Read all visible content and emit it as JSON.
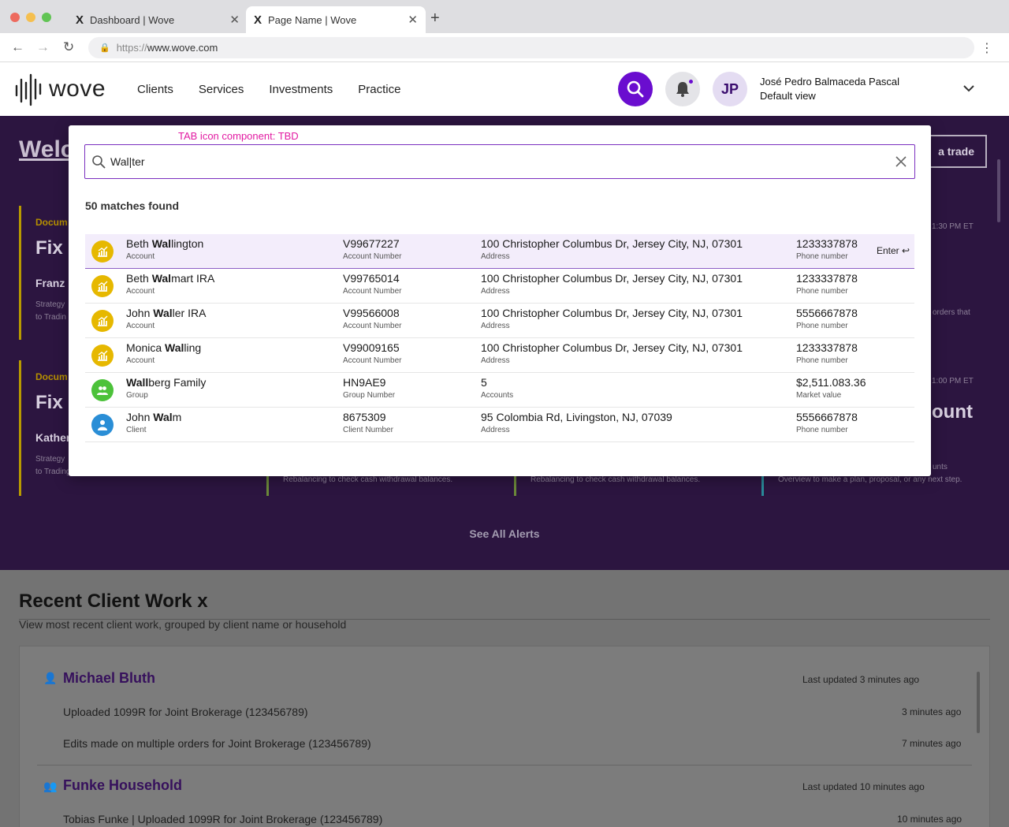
{
  "browser": {
    "tabs": [
      {
        "label": "Dashboard | Wove",
        "favicon": "X"
      },
      {
        "label": "Page Name | Wove",
        "favicon": "X"
      }
    ],
    "new_tab": "+",
    "url_scheme": "https://",
    "url_host": "www.wove.com"
  },
  "header": {
    "logo_text": "wove",
    "nav": [
      "Clients",
      "Services",
      "Investments",
      "Practice"
    ],
    "avatar_initials": "JP",
    "user_name": "José Pedro Balmaceda Pascal",
    "user_view": "Default view",
    "accent_color": "#6a0dcf"
  },
  "background": {
    "hero_title": "Welc",
    "trade_button": "a trade",
    "alerts": [
      {
        "doc": "Docum",
        "fix": "Fix",
        "who": "Franz",
        "desc1": "Strategy",
        "desc2": "to Tradin",
        "time": "1:30 PM ET",
        "right": "orders that"
      },
      {
        "doc": "Docum",
        "fix": "Fix S",
        "who": "Kather",
        "desc1": "Strategy",
        "desc2": "to Trading and Rebalancing to fix these strategies.",
        "time": "1:00 PM ET",
        "right": "unts",
        "right2": "Overview to make a plan, proposal, or any next step.",
        "big": "ount"
      }
    ],
    "mid_desc_1": "Rebalancing to check cash withdrawal balances.",
    "mid_desc_2": "Rebalancing to check cash withdrawal balances.",
    "see_all": "See All Alerts",
    "recent_title": "Recent Client Work x",
    "recent_sub": "View most recent client work, grouped by client name or household",
    "recent_groups": [
      {
        "name": "Michael Bluth",
        "updated": "Last updated 3 minutes ago",
        "items": [
          {
            "text": "Uploaded 1099R for Joint Brokerage (123456789)",
            "ago": "3 minutes ago"
          },
          {
            "text": "Edits made on multiple orders for Joint Brokerage (123456789)",
            "ago": "7 minutes ago"
          }
        ]
      },
      {
        "name": "Funke Household",
        "updated": "Last updated 10 minutes ago",
        "items": [
          {
            "text": "Tobias Funke | Uploaded 1099R for Joint Brokerage (123456789)",
            "ago": "10 minutes ago"
          }
        ]
      }
    ]
  },
  "search_modal": {
    "annotation": "TAB icon component: TBD",
    "query": "Wal|ter",
    "matches_text": "50 matches found",
    "enter_hint": "Enter ↩",
    "results": [
      {
        "icon": "account-icon",
        "color": "#e6b800",
        "name_bold": "Wal",
        "name_pre": "Beth ",
        "name_post": "lington",
        "type": "Account",
        "number": "V99677227",
        "number_label": "Account Number",
        "detail": "100 Christopher Columbus Dr, Jersey City, NJ, 07301",
        "detail_label": "Address",
        "extra": "1233337878",
        "extra_label": "Phone number"
      },
      {
        "icon": "account-icon",
        "color": "#e6b800",
        "name_bold": "Wal",
        "name_pre": "Beth ",
        "name_post": "mart IRA",
        "type": "Account",
        "number": "V99765014",
        "number_label": "Account Number",
        "detail": "100 Christopher Columbus Dr, Jersey City, NJ, 07301",
        "detail_label": "Address",
        "extra": "1233337878",
        "extra_label": "Phone number"
      },
      {
        "icon": "account-icon",
        "color": "#e6b800",
        "name_bold": "Wal",
        "name_pre": "John ",
        "name_post": "ler IRA",
        "type": "Account",
        "number": "V99566008",
        "number_label": "Account Number",
        "detail": "100 Christopher Columbus Dr, Jersey City, NJ, 07301",
        "detail_label": "Address",
        "extra": "5556667878",
        "extra_label": "Phone number"
      },
      {
        "icon": "account-icon",
        "color": "#e6b800",
        "name_bold": "Wal",
        "name_pre": "Monica ",
        "name_post": "ling",
        "type": "Account",
        "number": "V99009165",
        "number_label": "Account Number",
        "detail": "100 Christopher Columbus Dr, Jersey City, NJ, 07301",
        "detail_label": "Address",
        "extra": "1233337878",
        "extra_label": "Phone number"
      },
      {
        "icon": "group-icon",
        "color": "#4cc23a",
        "name_bold": "Wall",
        "name_pre": "",
        "name_post": "berg Family",
        "type": "Group",
        "number": "HN9AE9",
        "number_label": "Group Number",
        "detail": "5",
        "detail_label": "Accounts",
        "extra": "$2,511.083.36",
        "extra_label": "Market value"
      },
      {
        "icon": "client-icon",
        "color": "#2a8ed6",
        "name_bold": "Wal",
        "name_pre": "John ",
        "name_post": "m",
        "type": "Client",
        "number": "8675309",
        "number_label": "Client Number",
        "detail": "95 Colombia Rd, Livingston, NJ, 07039",
        "detail_label": "Address",
        "extra": "5556667878",
        "extra_label": "Phone number"
      }
    ]
  }
}
